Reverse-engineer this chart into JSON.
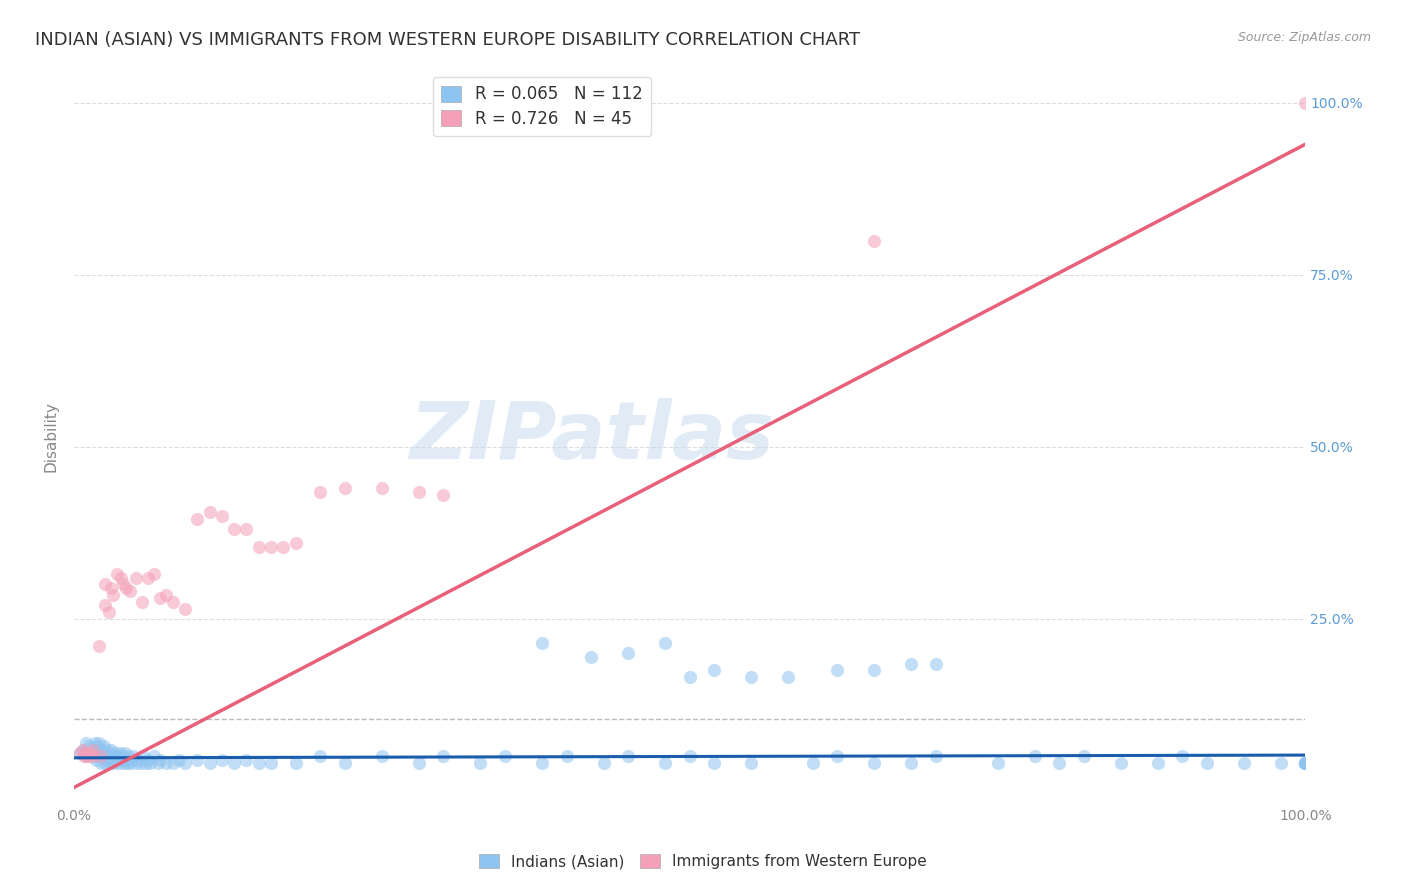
{
  "title": "INDIAN (ASIAN) VS IMMIGRANTS FROM WESTERN EUROPE DISABILITY CORRELATION CHART",
  "source": "Source: ZipAtlas.com",
  "ylabel": "Disability",
  "watermark": "ZIPatlas",
  "blue_R": 0.065,
  "blue_N": 112,
  "pink_R": 0.726,
  "pink_N": 45,
  "blue_color": "#8EC4F0",
  "pink_color": "#F4A0B8",
  "blue_line_color": "#1A5DAD",
  "pink_line_color": "#E8607A",
  "legend_label_blue": "Indians (Asian)",
  "legend_label_pink": "Immigrants from Western Europe",
  "blue_scatter_x": [
    0.005,
    0.007,
    0.008,
    0.01,
    0.01,
    0.012,
    0.013,
    0.015,
    0.015,
    0.017,
    0.018,
    0.018,
    0.019,
    0.02,
    0.02,
    0.021,
    0.022,
    0.023,
    0.024,
    0.025,
    0.025,
    0.026,
    0.027,
    0.028,
    0.029,
    0.03,
    0.031,
    0.032,
    0.033,
    0.034,
    0.035,
    0.036,
    0.037,
    0.038,
    0.039,
    0.04,
    0.041,
    0.042,
    0.043,
    0.044,
    0.045,
    0.046,
    0.048,
    0.05,
    0.052,
    0.054,
    0.056,
    0.058,
    0.06,
    0.062,
    0.065,
    0.068,
    0.07,
    0.075,
    0.08,
    0.085,
    0.09,
    0.1,
    0.11,
    0.12,
    0.13,
    0.14,
    0.15,
    0.16,
    0.18,
    0.2,
    0.22,
    0.25,
    0.28,
    0.3,
    0.33,
    0.35,
    0.38,
    0.4,
    0.43,
    0.45,
    0.48,
    0.5,
    0.52,
    0.55,
    0.6,
    0.62,
    0.65,
    0.68,
    0.7,
    0.75,
    0.78,
    0.8,
    0.82,
    0.85,
    0.88,
    0.9,
    0.92,
    0.95,
    0.98,
    1.0,
    1.0,
    1.0,
    1.0,
    1.0,
    0.38,
    0.42,
    0.45,
    0.48,
    0.5,
    0.52,
    0.55,
    0.58,
    0.62,
    0.65,
    0.68,
    0.7
  ],
  "blue_scatter_y": [
    0.055,
    0.06,
    0.055,
    0.07,
    0.05,
    0.065,
    0.055,
    0.06,
    0.05,
    0.07,
    0.045,
    0.055,
    0.065,
    0.07,
    0.05,
    0.06,
    0.04,
    0.055,
    0.065,
    0.04,
    0.055,
    0.045,
    0.06,
    0.05,
    0.04,
    0.06,
    0.05,
    0.04,
    0.055,
    0.045,
    0.05,
    0.04,
    0.055,
    0.045,
    0.05,
    0.04,
    0.055,
    0.045,
    0.04,
    0.05,
    0.04,
    0.045,
    0.05,
    0.04,
    0.045,
    0.04,
    0.05,
    0.04,
    0.045,
    0.04,
    0.05,
    0.04,
    0.045,
    0.04,
    0.04,
    0.045,
    0.04,
    0.045,
    0.04,
    0.045,
    0.04,
    0.045,
    0.04,
    0.04,
    0.04,
    0.05,
    0.04,
    0.05,
    0.04,
    0.05,
    0.04,
    0.05,
    0.04,
    0.05,
    0.04,
    0.05,
    0.04,
    0.05,
    0.04,
    0.04,
    0.04,
    0.05,
    0.04,
    0.04,
    0.05,
    0.04,
    0.05,
    0.04,
    0.05,
    0.04,
    0.04,
    0.05,
    0.04,
    0.04,
    0.04,
    0.04,
    0.04,
    0.04,
    0.04,
    0.04,
    0.215,
    0.195,
    0.2,
    0.215,
    0.165,
    0.175,
    0.165,
    0.165,
    0.175,
    0.175,
    0.185,
    0.185
  ],
  "pink_scatter_x": [
    0.005,
    0.007,
    0.008,
    0.01,
    0.01,
    0.012,
    0.013,
    0.015,
    0.015,
    0.02,
    0.022,
    0.025,
    0.025,
    0.028,
    0.03,
    0.032,
    0.035,
    0.038,
    0.04,
    0.042,
    0.045,
    0.05,
    0.055,
    0.06,
    0.065,
    0.07,
    0.075,
    0.08,
    0.09,
    0.1,
    0.11,
    0.12,
    0.13,
    0.14,
    0.15,
    0.16,
    0.17,
    0.18,
    0.2,
    0.22,
    0.25,
    0.28,
    0.3,
    0.65,
    1.0
  ],
  "pink_scatter_y": [
    0.055,
    0.06,
    0.05,
    0.05,
    0.055,
    0.05,
    0.055,
    0.06,
    0.05,
    0.21,
    0.05,
    0.27,
    0.3,
    0.26,
    0.295,
    0.285,
    0.315,
    0.31,
    0.3,
    0.295,
    0.29,
    0.31,
    0.275,
    0.31,
    0.315,
    0.28,
    0.285,
    0.275,
    0.265,
    0.395,
    0.405,
    0.4,
    0.38,
    0.38,
    0.355,
    0.355,
    0.355,
    0.36,
    0.435,
    0.44,
    0.44,
    0.435,
    0.43,
    0.8,
    1.0
  ],
  "blue_line_slope": 0.004,
  "blue_line_intercept": 0.048,
  "pink_line_slope": 0.935,
  "pink_line_intercept": 0.005,
  "dashed_line_y": 0.105,
  "grid_color": "#CCCCCC",
  "background_color": "#FFFFFF",
  "title_fontsize": 13,
  "axis_label_fontsize": 11,
  "tick_fontsize": 10,
  "legend_fontsize": 12
}
